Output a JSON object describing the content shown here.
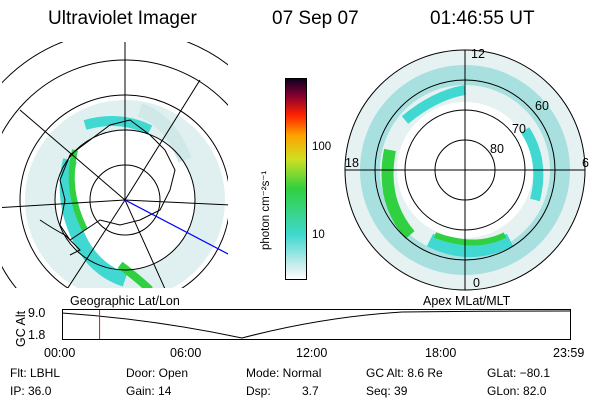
{
  "header": {
    "instrument": "Ultraviolet Imager",
    "date": "07 Sep 07",
    "time": "01:46:55 UT"
  },
  "left_map": {
    "projection_label": "Geographic Lat/Lon"
  },
  "right_map": {
    "projection_label": "Apex MLat/MLT",
    "mlt_labels": {
      "top": "12",
      "left": "18",
      "right": "6",
      "bottom": "0"
    },
    "mlat_labels": [
      "60",
      "70",
      "80"
    ]
  },
  "colorbar": {
    "unit": "photon cm⁻²s⁻¹",
    "ticks": [
      "100",
      "10"
    ]
  },
  "altitude_plot": {
    "ylabel": "GC Alt",
    "yticks": [
      "9.0",
      "1.8"
    ],
    "xticks": [
      "00:00",
      "06:00",
      "12:00",
      "18:00",
      "23:59"
    ],
    "current_time_fraction": 0.074
  },
  "info": {
    "filter": "Flt: LBHL",
    "door": "Door: Open",
    "mode": "Mode: Normal",
    "gc_alt": "GC Alt: 8.6 Re",
    "glat": "GLat: −80.1",
    "ip": "IP: 36.0",
    "gain": "Gain: 14",
    "dsp_label": "Dsp:",
    "dsp_value": "3.7",
    "seq": "Seq: 39",
    "glon": "GLon: 82.0"
  },
  "colors": {
    "aurora_low": "#e0f0f0",
    "aurora_cyan": "#40d8d0",
    "aurora_green": "#30d040",
    "time_marker": "#ff0000",
    "meridian": "#0000ff"
  }
}
